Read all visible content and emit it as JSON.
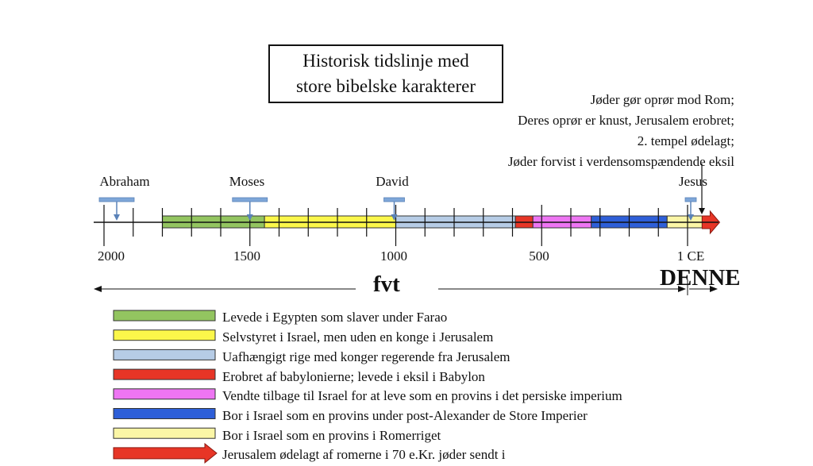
{
  "title": {
    "line1": "Historisk tidslinje med",
    "line2": "store bibelske karakterer"
  },
  "event_note": {
    "lines": [
      "Jøder gør oprør mod Rom;",
      "Deres oprør er knust, Jerusalem erobret;",
      "2. tempel ødelagt;",
      "Jøder forvist i verdensomspændende eksil"
    ]
  },
  "people": [
    {
      "name": "Abraham",
      "year": 2000
    },
    {
      "name": "Moses",
      "year": 1500
    },
    {
      "name": "David",
      "year": 1000
    },
    {
      "name": "Jesus",
      "year": 0
    }
  ],
  "axis": {
    "ticks": [
      "2000",
      "1500",
      "1000",
      "500",
      "1 CE"
    ],
    "era_bce": "fvt",
    "era_ce": "DENNE"
  },
  "periods": [
    {
      "key": "egypt",
      "color": "#93c560",
      "start_bce": 1800,
      "end_bce": 1450
    },
    {
      "key": "self-rule",
      "color": "#fbf74a",
      "start_bce": 1450,
      "end_bce": 1000
    },
    {
      "key": "kingdom",
      "color": "#b6cce6",
      "start_bce": 1000,
      "end_bce": 590
    },
    {
      "key": "babylon",
      "color": "#e73526",
      "start_bce": 590,
      "end_bce": 530
    },
    {
      "key": "persia",
      "color": "#ee75f3",
      "start_bce": 530,
      "end_bce": 330
    },
    {
      "key": "hellenistic",
      "color": "#2e5fd8",
      "start_bce": 330,
      "end_bce": 70
    },
    {
      "key": "rome",
      "color": "#fbf6a6",
      "start_bce": 70,
      "end_bce": -50
    },
    {
      "key": "diaspora",
      "color": "#e73526",
      "start_bce": -50,
      "end_bce": -110
    }
  ],
  "legend": [
    {
      "color": "#93c560",
      "label": "Levede i Egypten som slaver under Farao"
    },
    {
      "color": "#fbf74a",
      "label": "Selvstyret i Israel, men uden en konge i Jerusalem"
    },
    {
      "color": "#b6cce6",
      "label": "Uafhængigt rige med konger regerende fra Jerusalem"
    },
    {
      "color": "#e73526",
      "label": "Erobret af babylonierne; levede i eksil i Babylon"
    },
    {
      "color": "#ee75f3",
      "label": "Vendte tilbage til Israel for at leve som en provins i det persiske imperium"
    },
    {
      "color": "#2e5fd8",
      "label": "Bor i Israel som en provins under post-Alexander de Store Imperier"
    },
    {
      "color": "#fbf6a6",
      "label": "Bor i Israel som en provins i Romerriget"
    },
    {
      "color": "#e73526",
      "label": "Jerusalem ødelagt af romerne i 70 e.Kr. jøder sendt i",
      "arrow": true
    }
  ]
}
